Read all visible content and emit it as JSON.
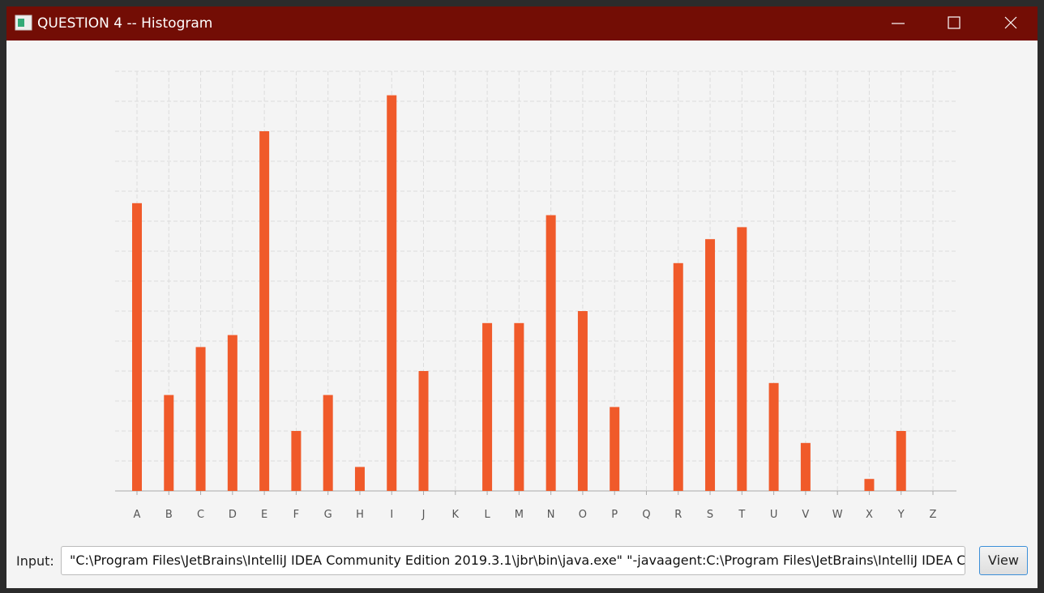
{
  "window": {
    "title": "QUESTION 4 -- Histogram"
  },
  "chart_data": {
    "type": "bar",
    "categories": [
      "A",
      "B",
      "C",
      "D",
      "E",
      "F",
      "G",
      "H",
      "I",
      "J",
      "K",
      "L",
      "M",
      "N",
      "O",
      "P",
      "Q",
      "R",
      "S",
      "T",
      "U",
      "V",
      "W",
      "X",
      "Y",
      "Z"
    ],
    "values": [
      24,
      8,
      12,
      13,
      30,
      5,
      8,
      2,
      33,
      10,
      0,
      14,
      14,
      23,
      15,
      7,
      0,
      19,
      21,
      22,
      9,
      4,
      0,
      1,
      5,
      0
    ],
    "color": "#f05a2a",
    "ylim": [
      0,
      35
    ],
    "yticks": [
      0,
      2.5,
      5,
      7.5,
      10,
      12.5,
      15,
      17.5,
      20,
      22.5,
      25,
      27.5,
      30,
      32.5,
      35
    ],
    "grid": true
  },
  "input": {
    "label": "Input:",
    "value": "\"C:\\Program Files\\JetBrains\\IntelliJ IDEA Community Edition 2019.3.1\\jbr\\bin\\java.exe\" \"-javaagent:C:\\Program Files\\JetBrains\\IntelliJ IDEA Co"
  },
  "button": {
    "label": "View"
  }
}
